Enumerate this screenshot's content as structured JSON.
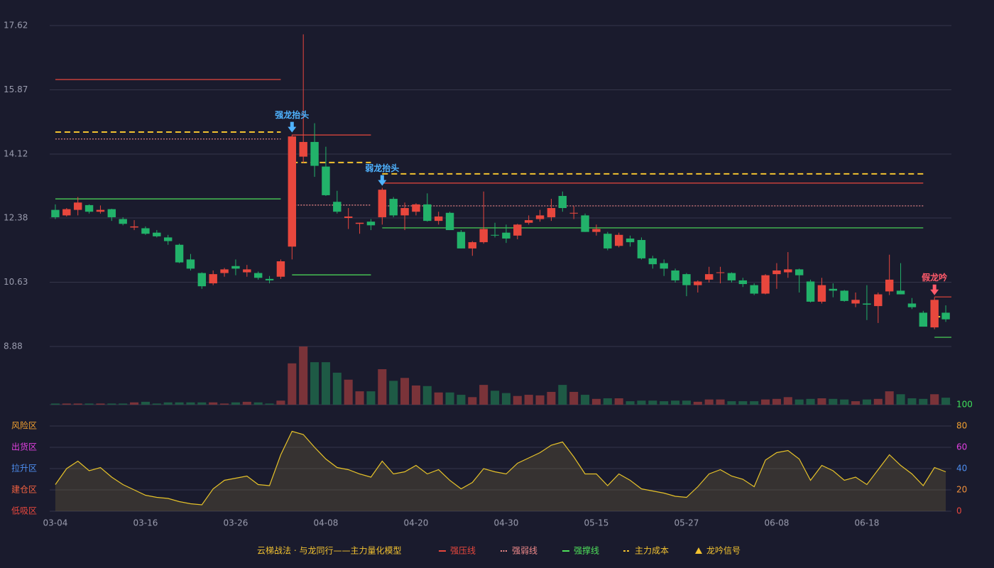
{
  "chart_data": {
    "type": "candlestick",
    "title": "云梯战法 · 与龙同行——主力量化模型",
    "categories": [
      "03-04",
      null,
      null,
      null,
      null,
      null,
      null,
      null,
      "03-16",
      null,
      null,
      null,
      null,
      null,
      null,
      null,
      "03-26",
      null,
      null,
      null,
      null,
      null,
      null,
      null,
      "04-08",
      null,
      null,
      null,
      null,
      null,
      null,
      null,
      "04-20",
      null,
      null,
      null,
      null,
      null,
      null,
      null,
      "04-30",
      null,
      null,
      null,
      null,
      null,
      null,
      null,
      "05-15",
      null,
      null,
      null,
      null,
      null,
      null,
      null,
      "05-27",
      null,
      null,
      null,
      null,
      null,
      null,
      null,
      "06-08",
      null,
      null,
      null,
      null,
      null,
      null,
      null,
      "06-18",
      null,
      null,
      null,
      null,
      null,
      null,
      null
    ],
    "open": [
      12.6,
      12.45,
      12.6,
      12.73,
      12.55,
      12.62,
      12.35,
      12.12,
      12.1,
      11.98,
      11.85,
      11.65,
      11.25,
      10.88,
      10.6,
      10.88,
      11.07,
      10.9,
      10.88,
      10.72,
      10.78,
      11.6,
      14.05,
      14.45,
      13.78,
      12.82,
      12.38,
      12.22,
      12.28,
      12.4,
      12.9,
      12.45,
      12.55,
      12.75,
      12.3,
      12.52,
      12.0,
      11.55,
      11.72,
      11.92,
      11.98,
      11.9,
      12.25,
      12.35,
      12.4,
      12.98,
      12.5,
      12.45,
      12.0,
      11.95,
      11.62,
      11.82,
      11.78,
      11.28,
      11.15,
      10.95,
      10.85,
      10.55,
      10.7,
      10.88,
      10.88,
      10.68,
      10.55,
      10.32,
      10.85,
      10.9,
      10.98,
      10.65,
      10.1,
      10.45,
      10.4,
      10.05,
      10.05,
      9.98,
      10.38,
      10.4,
      10.05,
      9.8,
      9.4,
      9.8
    ],
    "high": [
      12.75,
      12.65,
      12.95,
      12.75,
      12.72,
      12.63,
      12.4,
      12.32,
      12.15,
      12.05,
      11.92,
      11.68,
      11.4,
      10.9,
      10.95,
      11.02,
      11.25,
      11.1,
      10.92,
      10.8,
      11.25,
      14.65,
      17.38,
      14.96,
      14.32,
      13.12,
      12.65,
      12.25,
      12.35,
      13.2,
      12.95,
      12.8,
      12.78,
      13.05,
      12.55,
      12.55,
      12.05,
      11.75,
      13.1,
      12.25,
      12.2,
      12.22,
      12.45,
      12.6,
      12.9,
      13.1,
      12.7,
      12.5,
      12.2,
      12.0,
      11.98,
      11.9,
      11.85,
      11.35,
      11.25,
      11.0,
      10.88,
      10.68,
      11.05,
      11.05,
      10.9,
      10.75,
      10.6,
      10.85,
      11.15,
      11.45,
      11.0,
      10.7,
      10.75,
      10.6,
      10.42,
      10.35,
      10.55,
      10.35,
      11.38,
      11.15,
      10.2,
      9.85,
      10.22,
      10.0
    ],
    "low": [
      12.35,
      12.42,
      12.45,
      12.5,
      12.5,
      12.3,
      12.18,
      12.05,
      11.92,
      11.85,
      11.65,
      11.15,
      10.95,
      10.45,
      10.55,
      10.78,
      10.82,
      10.78,
      10.7,
      10.6,
      10.72,
      11.25,
      13.88,
      13.5,
      12.98,
      12.5,
      12.08,
      11.95,
      12.05,
      12.2,
      12.4,
      12.05,
      12.45,
      12.28,
      12.2,
      12.05,
      11.55,
      11.35,
      11.68,
      11.85,
      11.7,
      11.8,
      12.2,
      12.28,
      12.3,
      12.55,
      12.35,
      12.0,
      11.9,
      11.5,
      11.58,
      11.6,
      11.25,
      11.0,
      10.8,
      10.62,
      10.25,
      10.35,
      10.62,
      10.6,
      10.62,
      10.5,
      10.28,
      10.3,
      10.45,
      10.75,
      10.35,
      10.08,
      10.05,
      10.22,
      10.1,
      9.95,
      9.6,
      9.52,
      10.28,
      10.3,
      9.9,
      9.42,
      9.35,
      9.55
    ],
    "close": [
      12.4,
      12.62,
      12.8,
      12.55,
      12.6,
      12.4,
      12.22,
      12.15,
      11.95,
      11.88,
      11.75,
      11.17,
      11.0,
      10.52,
      10.85,
      10.98,
      11.0,
      10.98,
      10.75,
      10.68,
      11.2,
      14.6,
      14.45,
      13.8,
      13.0,
      12.55,
      12.42,
      12.25,
      12.18,
      13.15,
      12.45,
      12.65,
      12.75,
      12.3,
      12.42,
      12.05,
      11.55,
      11.72,
      12.08,
      11.9,
      11.82,
      12.2,
      12.32,
      12.45,
      12.65,
      12.65,
      12.52,
      12.0,
      12.08,
      11.55,
      11.92,
      11.72,
      11.28,
      11.12,
      11.0,
      10.68,
      10.55,
      10.65,
      10.85,
      10.9,
      10.68,
      10.58,
      10.32,
      10.82,
      10.95,
      10.98,
      10.82,
      10.1,
      10.55,
      10.4,
      10.12,
      10.15,
      10.02,
      10.3,
      10.7,
      10.3,
      9.95,
      9.42,
      10.15,
      9.62
    ],
    "up_color": "#e8473d",
    "down_color": "#22b26a",
    "ylim": [
      8.88,
      17.62
    ],
    "yticks": [
      8.88,
      10.63,
      12.38,
      14.12,
      15.87,
      17.62
    ],
    "grid": true,
    "volume": {
      "values": [
        2,
        2,
        2,
        2,
        2,
        2,
        2,
        4,
        5,
        2,
        4,
        4,
        4,
        4,
        4,
        2,
        4,
        5,
        4,
        2,
        7,
        71,
        100,
        73,
        73,
        55,
        43,
        23,
        23,
        61,
        41,
        46,
        33,
        32,
        21,
        21,
        17,
        13,
        34,
        24,
        20,
        15,
        17,
        16,
        22,
        34,
        22,
        17,
        10,
        11,
        11,
        6,
        7,
        7,
        6,
        7,
        7,
        5,
        9,
        9,
        6,
        6,
        6,
        9,
        10,
        13,
        9,
        10,
        11,
        10,
        9,
        6,
        9,
        10,
        23,
        18,
        11,
        10,
        18,
        12
      ],
      "ylim": [
        0,
        100
      ],
      "up_color": "#7a3339",
      "down_color": "#1e5a45"
    },
    "indicator": {
      "values": [
        25,
        40,
        47,
        38,
        41,
        32,
        25,
        20,
        15,
        13,
        12,
        9,
        7,
        6,
        21,
        29,
        31,
        33,
        25,
        24,
        53,
        75,
        72,
        60,
        49,
        41,
        39,
        35,
        32,
        47,
        35,
        37,
        43,
        35,
        39,
        29,
        21,
        27,
        40,
        37,
        35,
        45,
        50,
        55,
        62,
        65,
        51,
        35,
        35,
        24,
        35,
        29,
        21,
        19,
        17,
        14,
        13,
        23,
        35,
        39,
        33,
        30,
        23,
        48,
        55,
        57,
        49,
        29,
        43,
        38,
        29,
        32,
        25,
        39,
        53,
        43,
        35,
        24,
        41,
        37
      ],
      "ylim": [
        0,
        100
      ],
      "yticks": [
        0,
        20,
        40,
        60,
        80,
        100
      ],
      "ytick_colors": [
        "#e8473d",
        "#f0903a",
        "#4d8ef0",
        "#e040e0",
        "#f0a030",
        "#3ee05a"
      ],
      "color": "#e6c229",
      "zones": [
        {
          "label": "风险区",
          "value": 80,
          "color": "#f0a030"
        },
        {
          "label": "出货区",
          "value": 60,
          "color": "#e040e0"
        },
        {
          "label": "拉升区",
          "value": 40,
          "color": "#4d8ef0"
        },
        {
          "label": "建仓区",
          "value": 20,
          "color": "#f06040"
        },
        {
          "label": "低吸区",
          "value": 0,
          "color": "#e8473d"
        }
      ]
    },
    "levels": [
      {
        "name": "强压线",
        "color": "#e8473d",
        "style": "solid",
        "segments": [
          {
            "start": 0,
            "end": 20,
            "value": 16.15
          },
          {
            "start": 21,
            "end": 28,
            "value": 14.64
          },
          {
            "start": 29,
            "end": 77,
            "value": 13.33
          },
          {
            "start": 78,
            "end": 79,
            "value": 10.23
          }
        ]
      },
      {
        "name": "强弱线",
        "color": "#f08a8a",
        "style": "dotted",
        "segments": [
          {
            "start": 0,
            "end": 20,
            "value": 14.53
          },
          {
            "start": 21,
            "end": 28,
            "value": 12.73
          },
          {
            "start": 29,
            "end": 77,
            "value": 12.71
          }
        ]
      },
      {
        "name": "强撑线",
        "color": "#4ee05a",
        "style": "solid",
        "segments": [
          {
            "start": 0,
            "end": 20,
            "value": 12.9
          },
          {
            "start": 21,
            "end": 28,
            "value": 10.83
          },
          {
            "start": 29,
            "end": 77,
            "value": 12.11
          },
          {
            "start": 78,
            "end": 79,
            "value": 9.13
          }
        ]
      },
      {
        "name": "主力成本",
        "color": "#f2c230",
        "style": "dashed",
        "segments": [
          {
            "start": 0,
            "end": 20,
            "value": 14.72
          },
          {
            "start": 21,
            "end": 28,
            "value": 13.89
          },
          {
            "start": 29,
            "end": 77,
            "value": 13.58
          },
          {
            "start": 78,
            "end": 79,
            "value": 9.69
          }
        ]
      }
    ],
    "signal_legend": "龙吟信号",
    "signal_color": "#f2c230",
    "signals": [
      {
        "label": "强龙抬头",
        "index": 21,
        "color": "#4fb3ff"
      },
      {
        "label": "弱龙抬头",
        "index": 29,
        "color": "#4fb3ff"
      },
      {
        "label": "假龙吟",
        "index": 78,
        "color": "#ff5a6a"
      }
    ]
  }
}
